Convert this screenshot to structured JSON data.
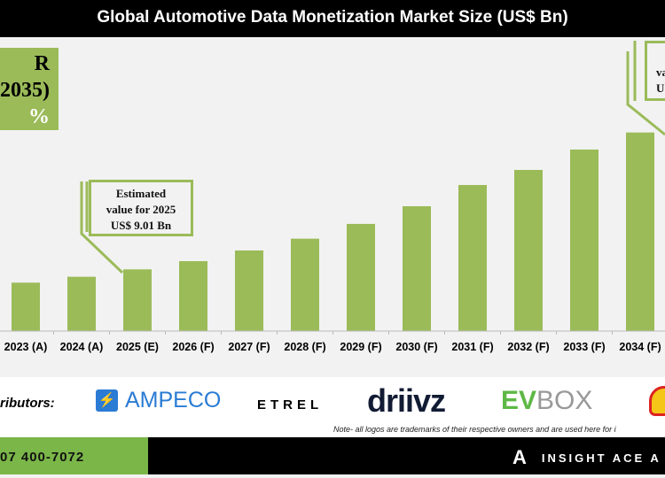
{
  "header": {
    "title": "Global Automotive Data Monetization Market Size (US$ Bn)"
  },
  "cagr_box": {
    "line1": "R",
    "line2": "2035)",
    "line3": "%"
  },
  "callout_2025": {
    "line1": "Estimated",
    "line2": "value for 2025",
    "line3": "US$ 9.01 Bn"
  },
  "callout_2035": {
    "line1": "va",
    "line2": "U"
  },
  "colors": {
    "bar": "#9bbb59",
    "title_bg": "#000000",
    "footer_green": "#7ab648"
  },
  "chart_data": {
    "type": "bar",
    "title": "Global Automotive Data Monetization Market Size (US$ Bn)",
    "categories": [
      "2023 (A)",
      "2024 (A)",
      "2025 (E)",
      "2026 (F)",
      "2027 (F)",
      "2028 (F)",
      "2029 (F)",
      "2030 (F)",
      "2031 (F)",
      "2032 (F)",
      "2033 (F)",
      "2034 (F)"
    ],
    "values": [
      7.07,
      7.93,
      9.01,
      10.21,
      11.77,
      13.49,
      15.65,
      18.23,
      21.33,
      23.53,
      26.51,
      29.0
    ],
    "ylim": [
      0,
      30
    ],
    "grid": false,
    "legend": "none"
  },
  "contributors": {
    "label": "ributors:",
    "logos": {
      "ampeco": "AMPECO",
      "etrel": "ETREL",
      "driivz": "driivz",
      "evbox_ev": "EV",
      "evbox_box": "BOX"
    },
    "note": "Note- all logos are trademarks of their respective owners and are used here for i"
  },
  "footer": {
    "phone": "07 400-7072",
    "brand": "INSIGHT ACE A"
  }
}
